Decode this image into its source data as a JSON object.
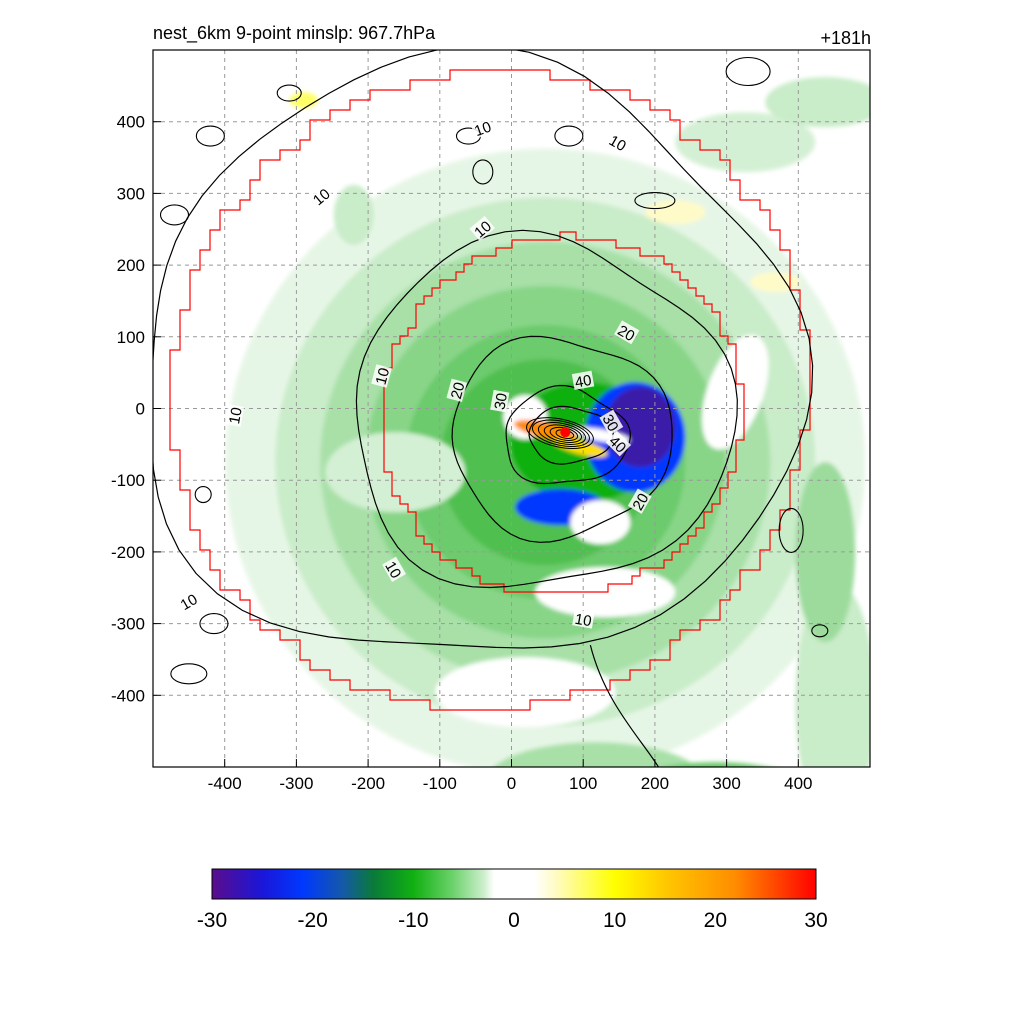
{
  "chart_data": {
    "type": "heatmap",
    "title": "nest_6km  9-point minslp: 967.7hPa",
    "forecast_hour": "+181h",
    "xlabel": "",
    "ylabel": "",
    "xlim": [
      -500,
      500
    ],
    "ylim": [
      -500,
      500
    ],
    "x_ticks": [
      "-400",
      "-300",
      "-200",
      "-100",
      "0",
      "100",
      "200",
      "300",
      "400"
    ],
    "y_ticks": [
      "400",
      "300",
      "200",
      "100",
      "0",
      "-100",
      "-200",
      "-300",
      "-400"
    ],
    "grid": true,
    "grid_style": "dashed",
    "colorbar": {
      "min": -30,
      "max": 30,
      "ticks": [
        "-30",
        "-20",
        "-10",
        "0",
        "10",
        "20",
        "30"
      ],
      "stops": [
        {
          "value": -30,
          "color": "#5a0d8c"
        },
        {
          "value": -25,
          "color": "#1a16d9"
        },
        {
          "value": -21,
          "color": "#0038ff"
        },
        {
          "value": -17,
          "color": "#1559a8"
        },
        {
          "value": -14,
          "color": "#0a7a3a"
        },
        {
          "value": -10,
          "color": "#10b010"
        },
        {
          "value": -6,
          "color": "#6ed36e"
        },
        {
          "value": -3,
          "color": "#cdeecd"
        },
        {
          "value": -2,
          "color": "#ffffff"
        },
        {
          "value": 2,
          "color": "#ffffff"
        },
        {
          "value": 4,
          "color": "#fffbc8"
        },
        {
          "value": 10,
          "color": "#ffff00"
        },
        {
          "value": 15,
          "color": "#ffc800"
        },
        {
          "value": 22,
          "color": "#ff8c00"
        },
        {
          "value": 30,
          "color": "#ff0000"
        }
      ]
    },
    "contour_labels": [
      {
        "text": "10",
        "x": -385,
        "y": -10,
        "rot": -80
      },
      {
        "text": "10",
        "x": -265,
        "y": 295,
        "rot": -40
      },
      {
        "text": "10",
        "x": -40,
        "y": 390,
        "rot": -20
      },
      {
        "text": "10",
        "x": 148,
        "y": 370,
        "rot": 30
      },
      {
        "text": "10",
        "x": -40,
        "y": 250,
        "rot": -40
      },
      {
        "text": "10",
        "x": -180,
        "y": 45,
        "rot": -75
      },
      {
        "text": "10",
        "x": -165,
        "y": -225,
        "rot": 60
      },
      {
        "text": "10",
        "x": 100,
        "y": -295,
        "rot": 10
      },
      {
        "text": "10",
        "x": -450,
        "y": -270,
        "rot": -30
      },
      {
        "text": "20",
        "x": -75,
        "y": 25,
        "rot": -75
      },
      {
        "text": "20",
        "x": 160,
        "y": 105,
        "rot": 30
      },
      {
        "text": "20",
        "x": 180,
        "y": -130,
        "rot": -60
      },
      {
        "text": "30",
        "x": -15,
        "y": 10,
        "rot": -80
      },
      {
        "text": "30",
        "x": 138,
        "y": -20,
        "rot": 60
      },
      {
        "text": "40",
        "x": 100,
        "y": 38,
        "rot": -10
      },
      {
        "text": "40",
        "x": 148,
        "y": -50,
        "rot": 45
      }
    ],
    "storm_center": {
      "x": 75,
      "y": -33
    }
  }
}
